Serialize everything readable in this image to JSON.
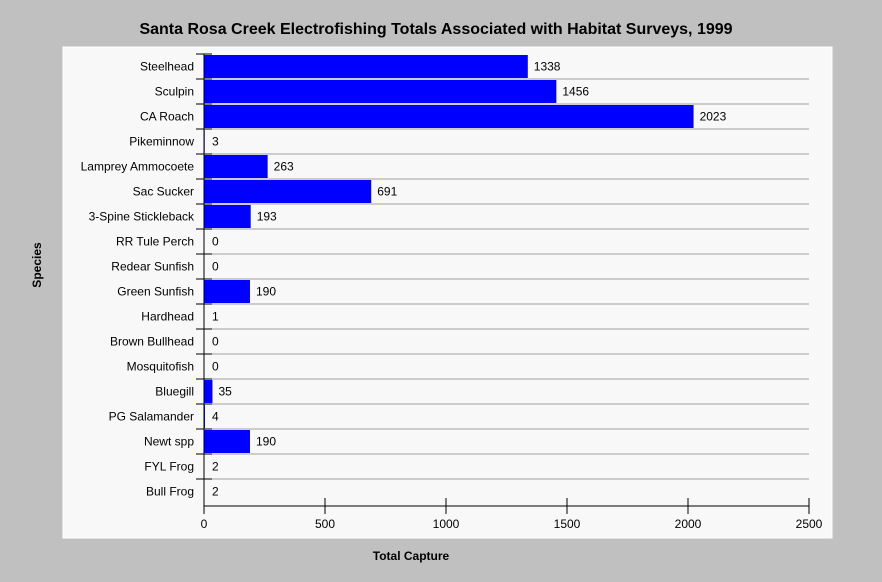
{
  "chart_data": {
    "type": "bar",
    "orientation": "horizontal",
    "title": "Santa Rosa Creek Electrofishing Totals Associated with Habitat Surveys, 1999",
    "xlabel": "Total Capture",
    "ylabel": "Species",
    "xlim": [
      0,
      2500
    ],
    "xticks": [
      0,
      500,
      1000,
      1500,
      2000,
      2500
    ],
    "grid": "horizontal",
    "categories": [
      "Steelhead",
      "Sculpin",
      "CA Roach",
      "Pikeminnow",
      "Lamprey Ammocoete",
      "Sac Sucker",
      "3-Spine Stickleback",
      "RR Tule Perch",
      "Redear Sunfish",
      "Green Sunfish",
      "Hardhead",
      "Brown Bullhead",
      "Mosquitofish",
      "Bluegill",
      "PG Salamander",
      "Newt spp",
      "FYL Frog",
      "Bull Frog"
    ],
    "values": [
      1338,
      1456,
      2023,
      3,
      263,
      691,
      193,
      0,
      0,
      190,
      1,
      0,
      0,
      35,
      4,
      190,
      2,
      2
    ],
    "bar_color": "#0000ff",
    "plot_background": "#f8f8f8",
    "page_background": "#c0c0c0"
  }
}
